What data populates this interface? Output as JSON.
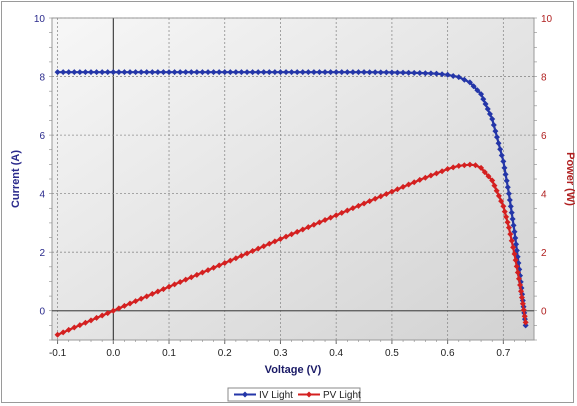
{
  "chart_data": {
    "type": "line",
    "title": "",
    "xlabel": "Voltage (V)",
    "ylabel_left": "Current (A)",
    "ylabel_right": "Power (W)",
    "xlim": [
      -0.11,
      0.755
    ],
    "ylim_left": [
      -1,
      10
    ],
    "ylim_right": [
      -1,
      10
    ],
    "x_ticks": [
      "-0.1",
      "0.0",
      "0.1",
      "0.2",
      "0.3",
      "0.4",
      "0.5",
      "0.6",
      "0.7"
    ],
    "x_tick_values": [
      -0.1,
      0.0,
      0.1,
      0.2,
      0.3,
      0.4,
      0.5,
      0.6,
      0.7
    ],
    "y_ticks_left": [
      "0",
      "2",
      "4",
      "6",
      "8",
      "10"
    ],
    "y_ticks_right": [
      "0",
      "2",
      "4",
      "6",
      "8",
      "10"
    ],
    "y_tick_values": [
      0,
      2,
      4,
      6,
      8,
      10
    ],
    "grid": true,
    "legend_position": "bottom-center",
    "series": [
      {
        "name": "IV Light",
        "axis": "left",
        "color": "#2436a8",
        "x": [
          -0.1,
          -0.05,
          0.0,
          0.05,
          0.1,
          0.15,
          0.2,
          0.25,
          0.3,
          0.35,
          0.4,
          0.45,
          0.5,
          0.55,
          0.58,
          0.6,
          0.62,
          0.64,
          0.66,
          0.68,
          0.7,
          0.71,
          0.72,
          0.73,
          0.74
        ],
        "y": [
          8.15,
          8.15,
          8.15,
          8.15,
          8.15,
          8.15,
          8.15,
          8.15,
          8.15,
          8.15,
          8.15,
          8.15,
          8.14,
          8.12,
          8.1,
          8.06,
          7.98,
          7.8,
          7.4,
          6.55,
          5.1,
          4.0,
          2.7,
          1.2,
          -0.5
        ]
      },
      {
        "name": "PV Light",
        "axis": "right",
        "color": "#d42020",
        "x": [
          -0.1,
          0.0,
          0.1,
          0.2,
          0.3,
          0.4,
          0.5,
          0.55,
          0.6,
          0.62,
          0.64,
          0.65,
          0.66,
          0.68,
          0.7,
          0.71,
          0.72,
          0.73,
          0.74
        ],
        "y": [
          -0.82,
          0.0,
          0.82,
          1.63,
          2.45,
          3.26,
          4.07,
          4.47,
          4.84,
          4.95,
          4.99,
          4.97,
          4.88,
          4.45,
          3.57,
          2.84,
          1.94,
          0.88,
          -0.4
        ]
      }
    ]
  }
}
